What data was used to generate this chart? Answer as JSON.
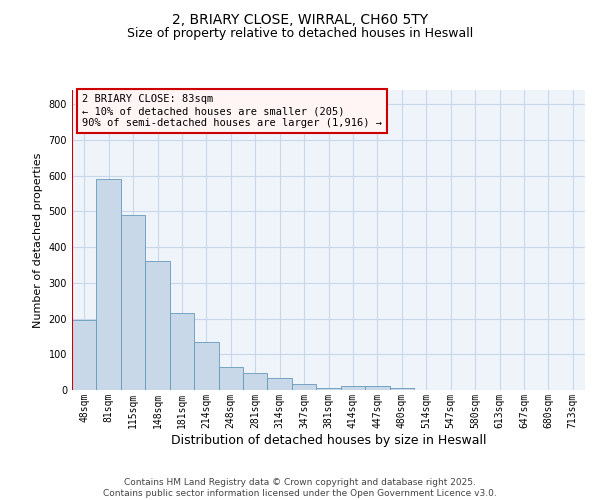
{
  "title_line1": "2, BRIARY CLOSE, WIRRAL, CH60 5TY",
  "title_line2": "Size of property relative to detached houses in Heswall",
  "xlabel": "Distribution of detached houses by size in Heswall",
  "ylabel": "Number of detached properties",
  "bar_labels": [
    "48sqm",
    "81sqm",
    "115sqm",
    "148sqm",
    "181sqm",
    "214sqm",
    "248sqm",
    "281sqm",
    "314sqm",
    "347sqm",
    "381sqm",
    "414sqm",
    "447sqm",
    "480sqm",
    "514sqm",
    "547sqm",
    "580sqm",
    "613sqm",
    "647sqm",
    "680sqm",
    "713sqm"
  ],
  "bar_values": [
    195,
    590,
    490,
    360,
    215,
    135,
    65,
    48,
    35,
    18,
    5,
    12,
    12,
    7,
    0,
    0,
    0,
    0,
    0,
    0,
    0
  ],
  "bar_color": "#c8d8e8",
  "bar_edgecolor": "#6699bb",
  "ylim": [
    0,
    840
  ],
  "yticks": [
    0,
    100,
    200,
    300,
    400,
    500,
    600,
    700,
    800
  ],
  "annotation_text": "2 BRIARY CLOSE: 83sqm\n← 10% of detached houses are smaller (205)\n90% of semi-detached houses are larger (1,916) →",
  "vline_x_bar_index": 0,
  "vline_color": "#cc0000",
  "grid_color": "#c8d8ea",
  "background_color": "#eef4fa",
  "footer_text": "Contains HM Land Registry data © Crown copyright and database right 2025.\nContains public sector information licensed under the Open Government Licence v3.0.",
  "annotation_box_facecolor": "#fff5f5",
  "annotation_box_edgecolor": "#cc0000",
  "title1_fontsize": 10,
  "title2_fontsize": 9,
  "xlabel_fontsize": 9,
  "ylabel_fontsize": 8,
  "tick_fontsize": 7,
  "annotation_fontsize": 7.5,
  "footer_fontsize": 6.5
}
